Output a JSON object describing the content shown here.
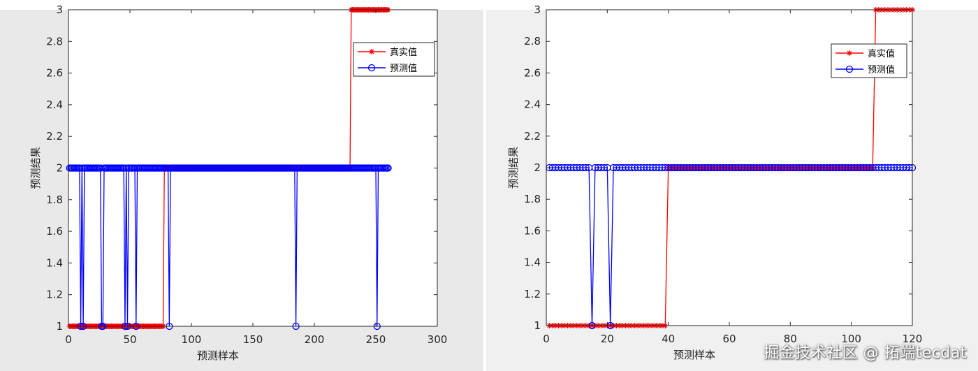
{
  "chart_data": [
    {
      "type": "line",
      "xlabel": "预测样本",
      "ylabel": "预测结果",
      "xlim": [
        0,
        300
      ],
      "ylim": [
        1,
        3
      ],
      "xticks": [
        "0",
        "50",
        "100",
        "150",
        "200",
        "250",
        "300"
      ],
      "yticks": [
        "1",
        "1.2",
        "1.4",
        "1.6",
        "1.8",
        "2",
        "2.2",
        "2.4",
        "2.6",
        "2.8",
        "3"
      ],
      "legend_position": "top-right",
      "n": 260,
      "series": [
        {
          "name": "真实值",
          "color": "#ff0000",
          "marker": "asterisk",
          "segments": [
            {
              "from": 1,
              "to": 77,
              "value": 1
            },
            {
              "from": 78,
              "to": 229,
              "value": 2
            },
            {
              "from": 230,
              "to": 260,
              "value": 3
            }
          ]
        },
        {
          "name": "预测值",
          "color": "#0000ff",
          "marker": "circle",
          "default_value": 2,
          "dips_to_1": [
            10,
            12,
            27,
            28,
            46,
            48,
            55,
            82,
            185,
            251
          ]
        }
      ]
    },
    {
      "type": "line",
      "xlabel": "预测样本",
      "ylabel": "预测结果",
      "xlim": [
        0,
        120
      ],
      "ylim": [
        1,
        3
      ],
      "xticks": [
        "0",
        "20",
        "40",
        "60",
        "80",
        "100",
        "120"
      ],
      "yticks": [
        "1",
        "1.2",
        "1.4",
        "1.6",
        "1.8",
        "2",
        "2.2",
        "2.4",
        "2.6",
        "2.8",
        "3"
      ],
      "legend_position": "top-right",
      "n": 120,
      "series": [
        {
          "name": "真实值",
          "color": "#ff0000",
          "marker": "asterisk",
          "segments": [
            {
              "from": 1,
              "to": 39,
              "value": 1
            },
            {
              "from": 40,
              "to": 107,
              "value": 2
            },
            {
              "from": 108,
              "to": 120,
              "value": 3
            }
          ]
        },
        {
          "name": "预测值",
          "color": "#0000ff",
          "marker": "circle",
          "default_value": 2,
          "dips_to_1": [
            15,
            21
          ]
        }
      ]
    }
  ],
  "watermark": "掘金技术社区 @ 拓端tecdat"
}
